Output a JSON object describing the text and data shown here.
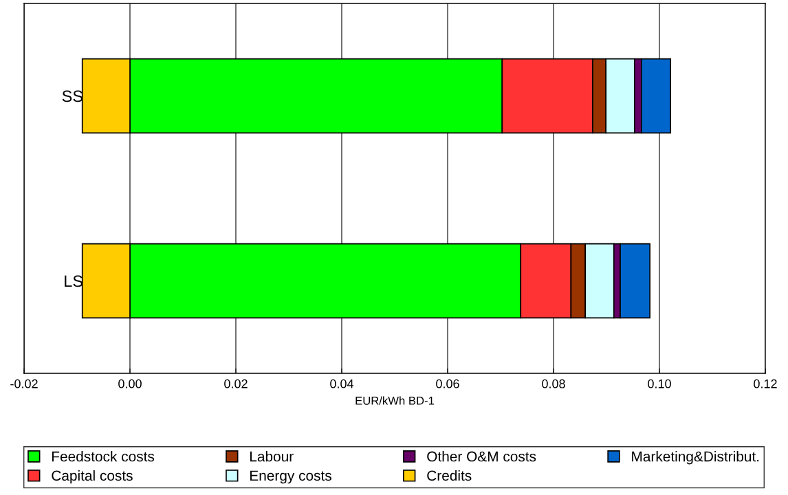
{
  "chart_data": {
    "type": "bar",
    "orientation": "horizontal",
    "stacked": true,
    "xlabel": "EUR/kWh BD-1",
    "categories": [
      "SS",
      "LS"
    ],
    "series": [
      {
        "name": "Feedstock costs",
        "color": "#00ff00",
        "values": [
          0.0703,
          0.0738
        ]
      },
      {
        "name": "Capital costs",
        "color": "#ff3333",
        "values": [
          0.0171,
          0.0095
        ]
      },
      {
        "name": "Labour",
        "color": "#993300",
        "values": [
          0.0025,
          0.0027
        ]
      },
      {
        "name": "Energy costs",
        "color": "#ccffff",
        "values": [
          0.0054,
          0.0054
        ]
      },
      {
        "name": "Other O&M costs",
        "color": "#660066",
        "values": [
          0.0013,
          0.0012
        ]
      },
      {
        "name": "Credits",
        "color": "#ffcc00",
        "values": [
          -0.009,
          -0.009
        ]
      },
      {
        "name": "Marketing&Distribut.",
        "color": "#0066cc",
        "values": [
          0.0055,
          0.0056
        ]
      }
    ],
    "xlim": [
      -0.02,
      0.12
    ],
    "xticks": [
      {
        "value": -0.02,
        "label": "-0.02"
      },
      {
        "value": 0,
        "label": "0.00"
      },
      {
        "value": 0.02,
        "label": "0.02"
      },
      {
        "value": 0.04,
        "label": "0.04"
      },
      {
        "value": 0.06,
        "label": "0.06"
      },
      {
        "value": 0.08,
        "label": "0.08"
      },
      {
        "value": 0.1,
        "label": "0.10"
      },
      {
        "value": 0.12,
        "label": "0.12"
      }
    ],
    "grid": "x",
    "legend": "bottom"
  }
}
